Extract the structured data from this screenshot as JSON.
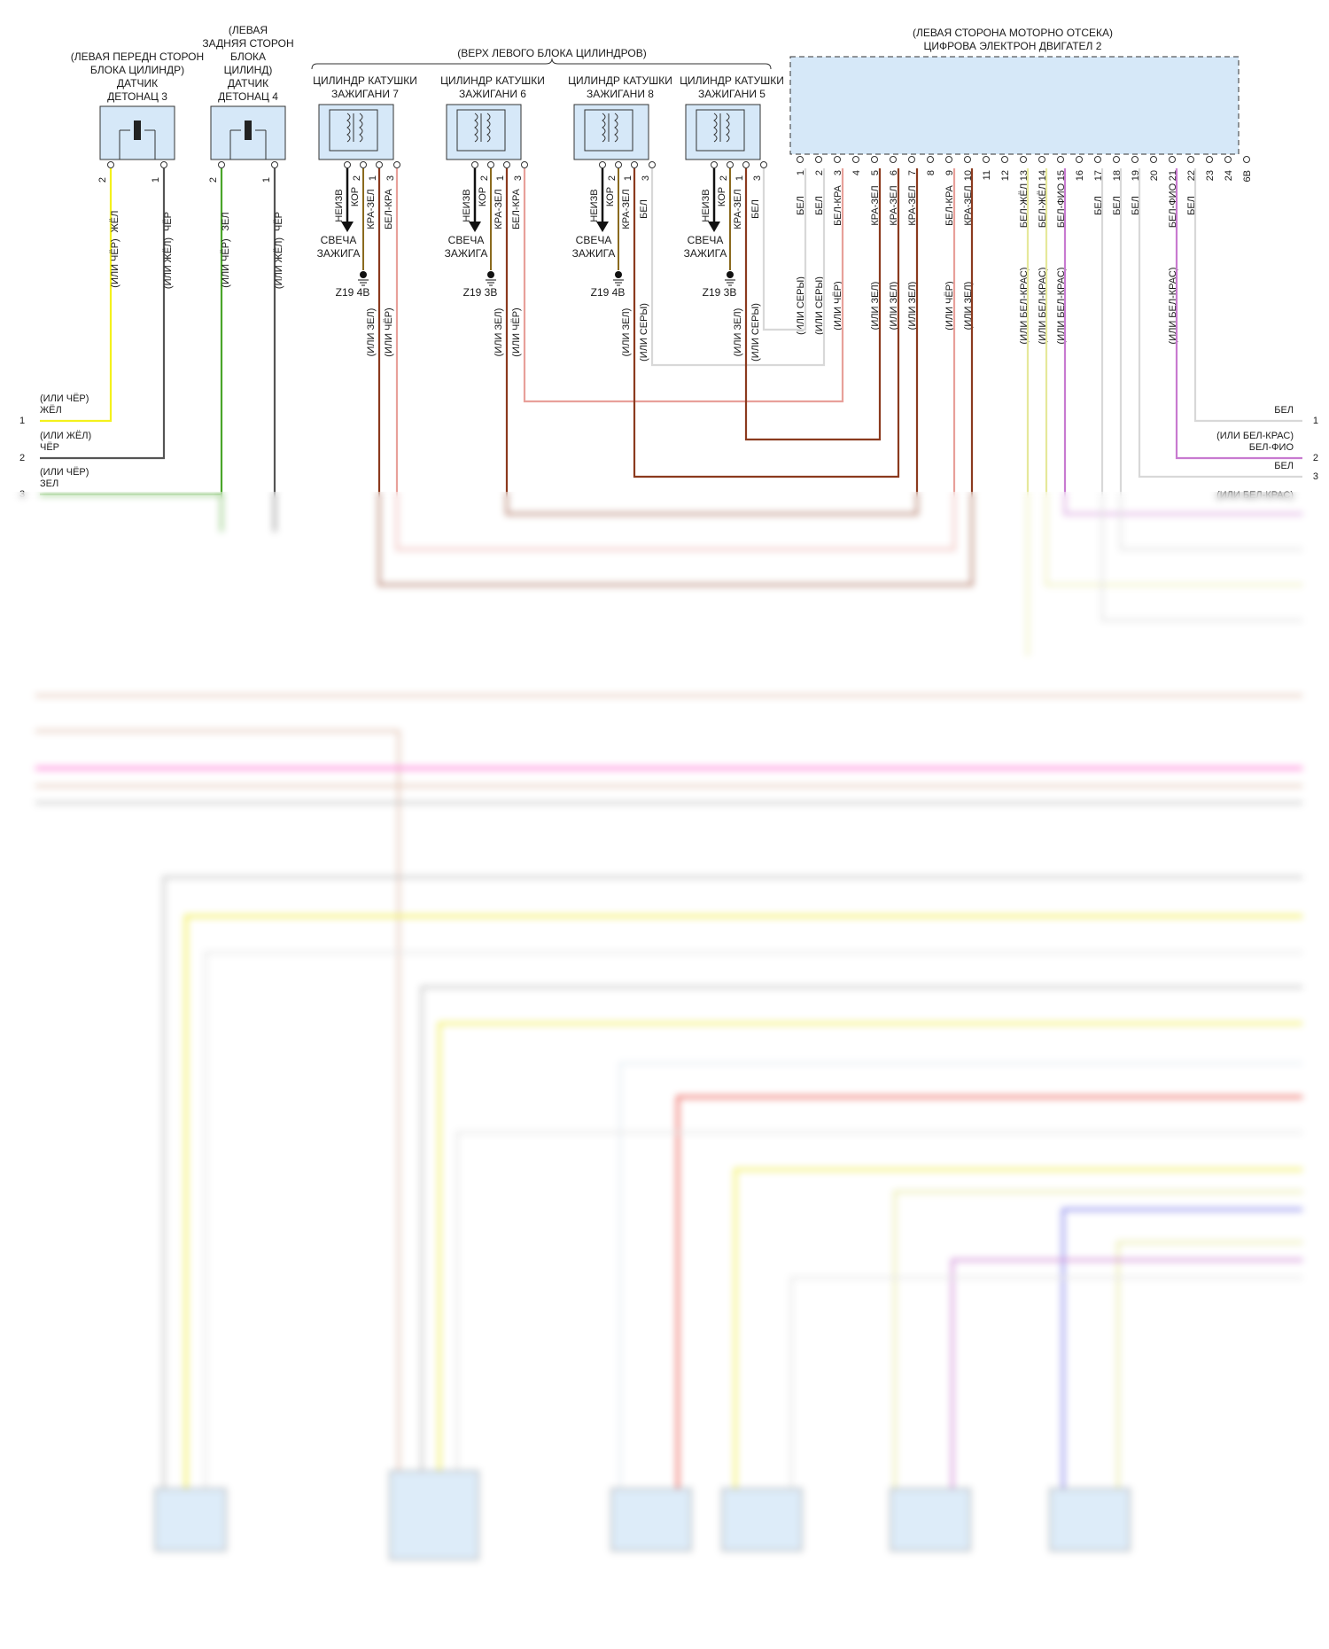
{
  "colors": {
    "yellow": "#f4f11c",
    "black": "#555555",
    "green": "#4aa52a",
    "brown": "#8b3a1e",
    "red_green": "#b5451e",
    "white_red": "#e8a09a",
    "white": "#d8d8d8",
    "white_yellow": "#e6e89a",
    "white_violet": "#c87ad0",
    "box_fill": "#d6e8f8",
    "box_stroke": "#333333",
    "pink": "#ff7ad6",
    "yellow2": "#f1ee50",
    "red": "#e8392f",
    "violet": "#6b6be8",
    "tan": "#d9b09a",
    "grey": "#b0b0b0"
  },
  "ecm": {
    "caption": "(ЛЕВАЯ СТОРОНА МОТОРНО ОТСЕКА)",
    "title": "ЦИФРОВА ЭЛЕКТРОН ДВИГАТЕЛ 2",
    "pins": [
      "1",
      "2",
      "3",
      "4",
      "5",
      "6",
      "7",
      "8",
      "9",
      "10",
      "11",
      "12",
      "13",
      "14",
      "15",
      "16",
      "17",
      "18",
      "19",
      "20",
      "21",
      "22",
      "23",
      "24",
      "6B"
    ],
    "wires": [
      {
        "pin": "1",
        "color": "БЕЛ",
        "alt": "(ИЛИ СЕРЫ)",
        "c": "white"
      },
      {
        "pin": "2",
        "color": "БЕЛ",
        "alt": "(ИЛИ СЕРЫ)",
        "c": "white"
      },
      {
        "pin": "3",
        "color": "БЕЛ-КРА",
        "alt": "(ИЛИ ЧЁР)",
        "c": "white_red"
      },
      {
        "pin": "5",
        "color": "КРА-ЗЕЛ",
        "alt": "(ИЛИ ЗЕЛ)",
        "c": "brown"
      },
      {
        "pin": "6",
        "color": "КРА-ЗЕЛ",
        "alt": "(ИЛИ ЗЕЛ)",
        "c": "brown"
      },
      {
        "pin": "7",
        "color": "КРА-ЗЕЛ",
        "alt": "(ИЛИ ЗЕЛ)",
        "c": "brown"
      },
      {
        "pin": "9",
        "color": "БЕЛ-КРА",
        "alt": "(ИЛИ ЧЁР)",
        "c": "white_red"
      },
      {
        "pin": "10",
        "color": "КРА-ЗЕЛ",
        "alt": "(ИЛИ ЗЕЛ)",
        "c": "brown"
      },
      {
        "pin": "13",
        "color": "БЕЛ-ЖЁЛ",
        "alt": "(ИЛИ БЕЛ-КРАС)",
        "c": "white_yellow"
      },
      {
        "pin": "14",
        "color": "БЕЛ-ЖЁЛ",
        "alt": "(ИЛИ БЕЛ-КРАС)",
        "c": "white_yellow"
      },
      {
        "pin": "15",
        "color": "БЕЛ-ФИО",
        "alt": "(ИЛИ БЕЛ-КРАС)",
        "c": "white_violet"
      },
      {
        "pin": "17",
        "color": "БЕЛ",
        "alt": "",
        "c": "white"
      },
      {
        "pin": "18",
        "color": "БЕЛ",
        "alt": "",
        "c": "white"
      },
      {
        "pin": "19",
        "color": "БЕЛ",
        "alt": "",
        "c": "white"
      },
      {
        "pin": "21",
        "color": "БЕЛ-ФИО",
        "alt": "(ИЛИ БЕЛ-КРАС)",
        "c": "white_violet"
      },
      {
        "pin": "22",
        "color": "БЕЛ",
        "alt": "",
        "c": "white"
      }
    ]
  },
  "group_caption": "(ВЕРХ ЛЕВОГО БЛОКА ЦИЛИНДРОВ)",
  "knock_sensors": [
    {
      "caption": "(ЛЕВАЯ ПЕРЕДН СТОРОН\nБЛОКА ЦИЛИНДР)\nДАТЧИК\nДЕТОНАЦ 3",
      "pins": [
        "2",
        "1"
      ],
      "wires": [
        {
          "color": "ЖЁЛ",
          "alt": "(ИЛИ ЧЁР)"
        },
        {
          "color": "ЧЁР",
          "alt": "(ИЛИ ЖЁЛ)"
        }
      ]
    },
    {
      "caption": "(ЛЕВАЯ\nЗАДНЯЯ СТОРОН\nБЛОКА\nЦИЛИНД)\nДАТЧИК\nДЕТОНАЦ 4",
      "pins": [
        "2",
        "1"
      ],
      "wires": [
        {
          "color": "ЗЕЛ",
          "alt": "(ИЛИ ЧЁР)"
        },
        {
          "color": "ЧЁР",
          "alt": "(ИЛИ ЖЁЛ)"
        }
      ]
    }
  ],
  "coils": [
    {
      "caption": "ЦИЛИНДР КАТУШКИ\nЗАЖИГАНИ 7",
      "pins": [
        "2",
        "1",
        "3"
      ],
      "w_kor": "КОР",
      "w1": "КРА-ЗЕЛ",
      "w3": "БЕЛ-КРА",
      "alt1": "(ИЛИ ЗЕЛ)",
      "alt3": "(ИЛИ ЧЁР)",
      "neizv": "НЕИЗВ",
      "plug": "СВЕЧА\nЗАЖИГА",
      "ground": "Z19 4B"
    },
    {
      "caption": "ЦИЛИНДР КАТУШКИ\nЗАЖИГАНИ 6",
      "pins": [
        "2",
        "1",
        "3"
      ],
      "w_kor": "КОР",
      "w1": "КРА-ЗЕЛ",
      "w3": "БЕЛ-КРА",
      "alt1": "(ИЛИ ЗЕЛ)",
      "alt3": "(ИЛИ ЧЁР)",
      "neizv": "НЕИЗВ",
      "plug": "СВЕЧА\nЗАЖИГА",
      "ground": "Z19 3B"
    },
    {
      "caption": "ЦИЛИНДР КАТУШКИ\nЗАЖИГАНИ 8",
      "pins": [
        "2",
        "1",
        "3"
      ],
      "w_kor": "КОР",
      "w1": "КРА-ЗЕЛ",
      "w3": "БЕЛ",
      "alt1": "(ИЛИ ЗЕЛ)",
      "alt3": "(ИЛИ СЕРЫ)",
      "neizv": "НЕИЗВ",
      "plug": "СВЕЧА\nЗАЖИГА",
      "ground": "Z19 4B"
    },
    {
      "caption": "ЦИЛИНДР КАТУШКИ\nЗАЖИГАНИ 5",
      "pins": [
        "2",
        "1",
        "3"
      ],
      "w_kor": "КОР",
      "w1": "КРА-ЗЕЛ",
      "w3": "БЕЛ",
      "alt1": "(ИЛИ ЗЕЛ)",
      "alt3": "(ИЛИ СЕРЫ)",
      "neizv": "НЕИЗВ",
      "plug": "СВЕЧА\nЗАЖИГА",
      "ground": "Z19 3B"
    }
  ],
  "left_connector": [
    {
      "num": "1",
      "alt": "(ИЛИ ЧЁР)",
      "color": "ЖЁЛ"
    },
    {
      "num": "2",
      "alt": "(ИЛИ ЖЁЛ)",
      "color": "ЧЁР"
    },
    {
      "num": "3",
      "alt": "(ИЛИ ЧЁР)",
      "color": "ЗЕЛ"
    }
  ],
  "right_connector": [
    {
      "num": "1",
      "alt": "",
      "color": "БЕЛ"
    },
    {
      "num": "2",
      "alt": "(ИЛИ БЕЛ-КРАС)",
      "color": "БЕЛ-ФИО"
    },
    {
      "num": "3",
      "alt": "",
      "color": "БЕЛ"
    },
    {
      "num": "",
      "alt": "(ИЛИ БЕЛ-КРАС)",
      "color": ""
    }
  ]
}
